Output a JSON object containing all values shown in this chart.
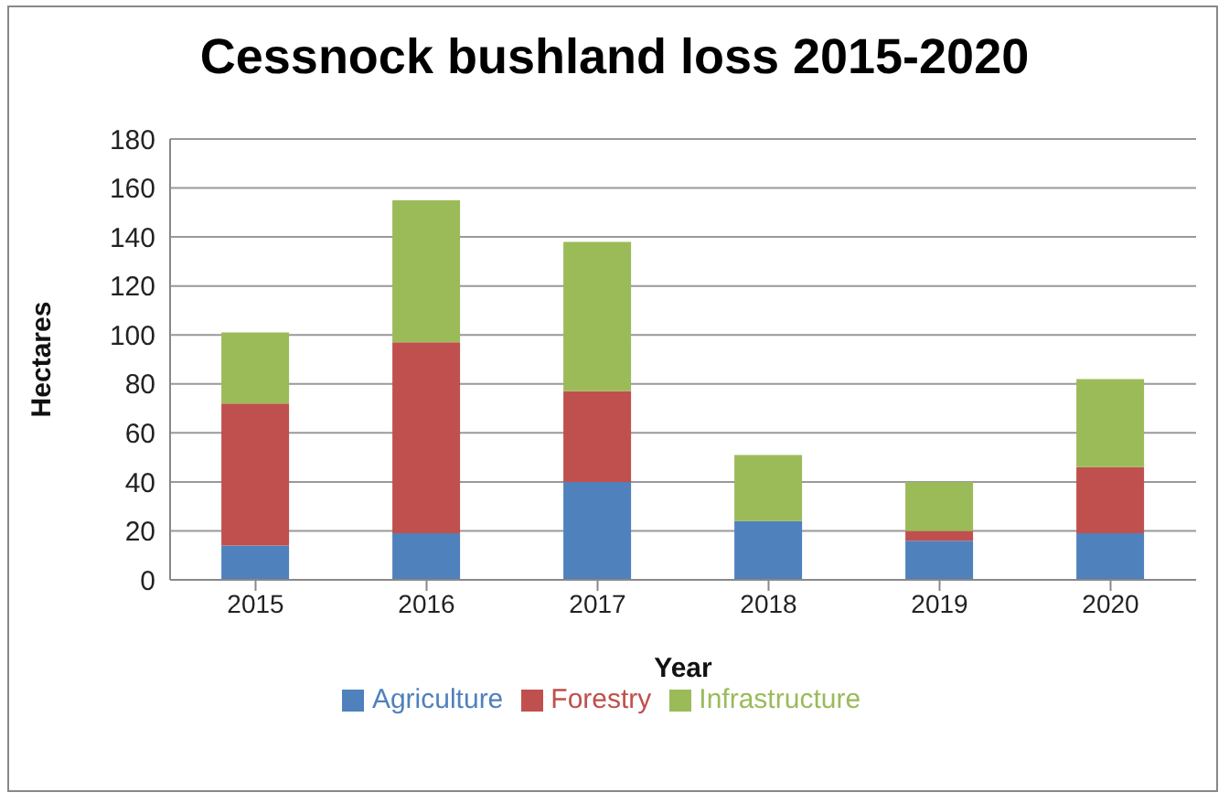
{
  "chart_data": {
    "type": "bar",
    "title": "Cessnock bushland loss 2015-2020",
    "xlabel": "Year",
    "ylabel": "Hectares",
    "categories": [
      "2015",
      "2016",
      "2017",
      "2018",
      "2019",
      "2020"
    ],
    "series": [
      {
        "name": "Agriculture",
        "color": "#4f81bd",
        "values": [
          14,
          19,
          40,
          24,
          16,
          19
        ]
      },
      {
        "name": "Forestry",
        "color": "#c0504d",
        "values": [
          58,
          78,
          37,
          0,
          4,
          27
        ]
      },
      {
        "name": "Infrastructure",
        "color": "#9bbb59",
        "values": [
          29,
          58,
          61,
          27,
          20,
          36
        ]
      }
    ],
    "stacked": true,
    "ylim": [
      0,
      180
    ],
    "yticks": [
      0,
      20,
      40,
      60,
      80,
      100,
      120,
      140,
      160,
      180
    ],
    "grid": "y",
    "legend": "bottom"
  }
}
